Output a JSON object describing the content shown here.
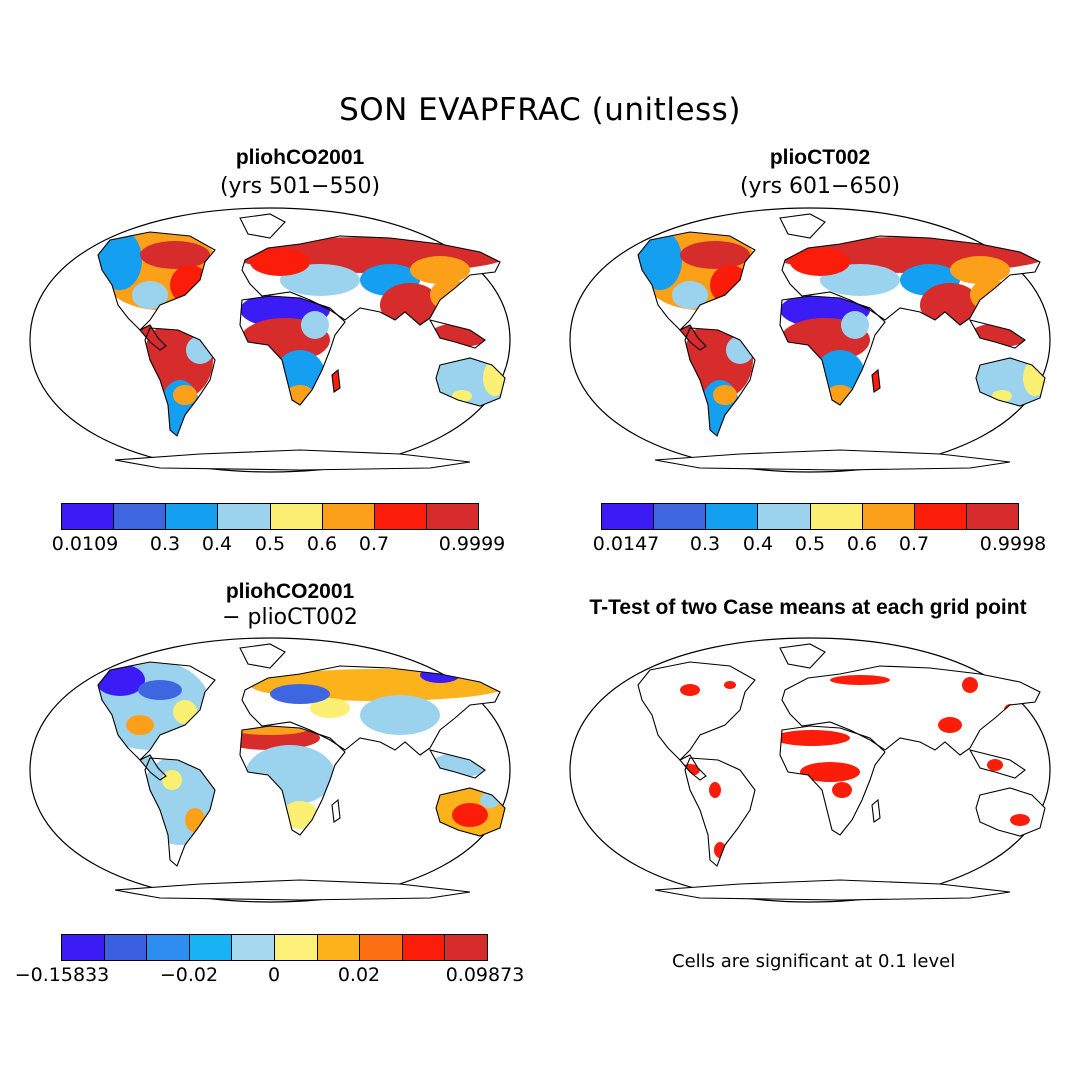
{
  "title": "SON EVAPFRAC (unitless)",
  "panels": [
    {
      "title": "pliohCO2001",
      "subtitle": "(yrs 501−550)",
      "colorbar": {
        "colors": [
          "#3c1cf5",
          "#3d66e0",
          "#159ff0",
          "#9bd3ee",
          "#fbef74",
          "#fca019",
          "#fb1c0a",
          "#d62c2c"
        ],
        "labels": [
          "0.0109",
          "0.3",
          "0.4",
          "0.5",
          "0.6",
          "0.7",
          "0.9999"
        ]
      }
    },
    {
      "title": "plioCT002",
      "subtitle": "(yrs 601−650)",
      "colorbar": {
        "colors": [
          "#3c1cf5",
          "#3d66e0",
          "#159ff0",
          "#9bd3ee",
          "#fbef74",
          "#fca019",
          "#fb1c0a",
          "#d62c2c"
        ],
        "labels": [
          "0.0147",
          "0.3",
          "0.4",
          "0.5",
          "0.6",
          "0.7",
          "0.9998"
        ]
      }
    },
    {
      "title": "pliohCO2001",
      "subtitle": "− plioCT002",
      "colorbar": {
        "colors": [
          "#3c1cf5",
          "#3a5fe0",
          "#2e8df0",
          "#17b3f5",
          "#a6d8ee",
          "#fdf17a",
          "#fcb21a",
          "#fc6f12",
          "#fb1c0a",
          "#d62c2c"
        ],
        "labels": [
          "−0.15833",
          "−0.02",
          "0",
          "0.02",
          "0.09873"
        ]
      }
    },
    {
      "title": "T-Test of two Case means at each grid point",
      "subtitle": "",
      "note": "Cells are significant at 0.1 level"
    }
  ]
}
